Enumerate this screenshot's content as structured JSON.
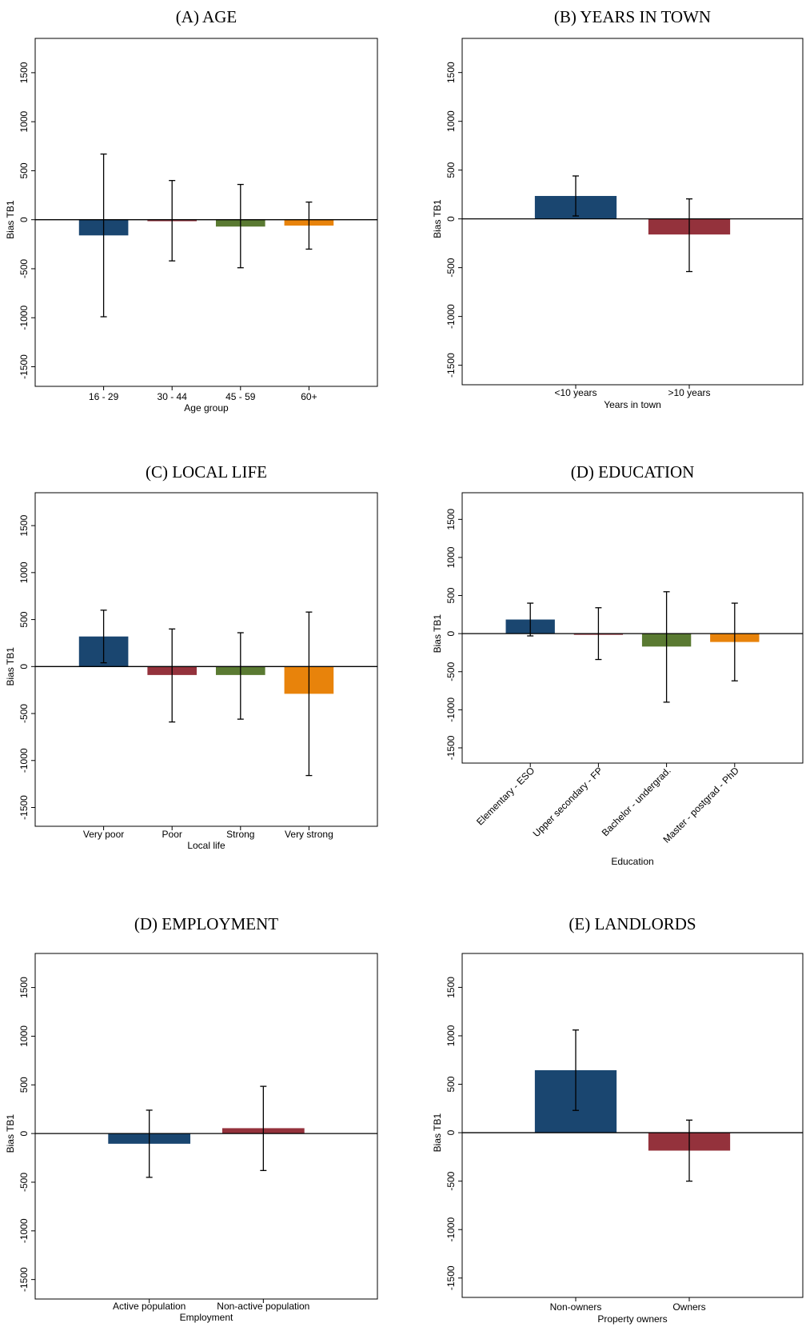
{
  "colors": {
    "series": [
      "#1a4670",
      "#94323c",
      "#5a7a32",
      "#e8830b"
    ],
    "axis": "#000000",
    "background": "#ffffff"
  },
  "chart_data": [
    {
      "type": "bar",
      "panel": "(A) AGE",
      "title": "(A) AGE",
      "xlabel": "Age group",
      "ylabel": "Bias TB1",
      "ylim": [
        -1700,
        1850
      ],
      "yticks": [
        1500,
        1000,
        500,
        0,
        -500,
        -1000,
        -1500
      ],
      "categories": [
        "16 - 29",
        "30 - 44",
        "45 - 59",
        "60+"
      ],
      "values": [
        -160,
        -15,
        -70,
        -60
      ],
      "ci_low": [
        -990,
        -420,
        -490,
        -300
      ],
      "ci_high": [
        670,
        400,
        360,
        180
      ],
      "grid": false,
      "error_bars": true
    },
    {
      "type": "bar",
      "panel": "(B) YEARS IN TOWN",
      "title": "(B) YEARS IN TOWN",
      "xlabel": "Years in town",
      "ylabel": "Bias TB1",
      "ylim": [
        -1700,
        1850
      ],
      "yticks": [
        1500,
        1000,
        500,
        0,
        -500,
        -1000,
        -1500
      ],
      "categories": [
        "<10 years",
        ">10 years"
      ],
      "values": [
        235,
        -160
      ],
      "ci_low": [
        30,
        -540
      ],
      "ci_high": [
        440,
        205
      ],
      "grid": false,
      "error_bars": true
    },
    {
      "type": "bar",
      "panel": "(C) LOCAL LIFE",
      "title": "(C) LOCAL LIFE",
      "xlabel": "Local life",
      "ylabel": "Bias TB1",
      "ylim": [
        -1700,
        1850
      ],
      "yticks": [
        1500,
        1000,
        500,
        0,
        -500,
        -1000,
        -1500
      ],
      "categories": [
        "Very poor",
        "Poor",
        "Strong",
        "Very strong"
      ],
      "values": [
        320,
        -90,
        -90,
        -290
      ],
      "ci_low": [
        40,
        -590,
        -560,
        -1160
      ],
      "ci_high": [
        600,
        400,
        360,
        580
      ],
      "grid": false,
      "error_bars": true
    },
    {
      "type": "bar",
      "panel": "(D) EDUCATION",
      "title": "(D) EDUCATION",
      "xlabel": "Education",
      "ylabel": "Bias TB1",
      "ylim": [
        -1700,
        1850
      ],
      "yticks": [
        1500,
        1000,
        500,
        0,
        -500,
        -1000,
        -1500
      ],
      "categories": [
        "Elementary - ESO",
        "Upper secondary - FP",
        "Bachelor - undergrad.",
        "Master - postgrad - PhD"
      ],
      "values": [
        185,
        -10,
        -170,
        -110
      ],
      "ci_low": [
        -30,
        -340,
        -900,
        -620
      ],
      "ci_high": [
        400,
        340,
        550,
        400
      ],
      "grid": false,
      "error_bars": true,
      "rotated_tick_labels": true
    },
    {
      "type": "bar",
      "panel": "(D) EMPLOYMENT",
      "title": "(D) EMPLOYMENT",
      "xlabel": "Employment",
      "ylabel": "Bias TB1",
      "ylim": [
        -1700,
        1850
      ],
      "yticks": [
        1500,
        1000,
        500,
        0,
        -500,
        -1000,
        -1500
      ],
      "categories": [
        "Active population",
        "Non-active population"
      ],
      "values": [
        -105,
        55
      ],
      "ci_low": [
        -450,
        -380
      ],
      "ci_high": [
        240,
        485
      ],
      "grid": false,
      "error_bars": true
    },
    {
      "type": "bar",
      "panel": "(E) LANDLORDS",
      "title": "(E) LANDLORDS",
      "xlabel": "Property owners",
      "ylabel": "Bias TB1",
      "ylim": [
        -1700,
        1850
      ],
      "yticks": [
        1500,
        1000,
        500,
        0,
        -500,
        -1000,
        -1500
      ],
      "categories": [
        "Non-owners",
        "Owners"
      ],
      "values": [
        645,
        -185
      ],
      "ci_low": [
        230,
        -500
      ],
      "ci_high": [
        1060,
        130
      ],
      "grid": false,
      "error_bars": true
    }
  ]
}
